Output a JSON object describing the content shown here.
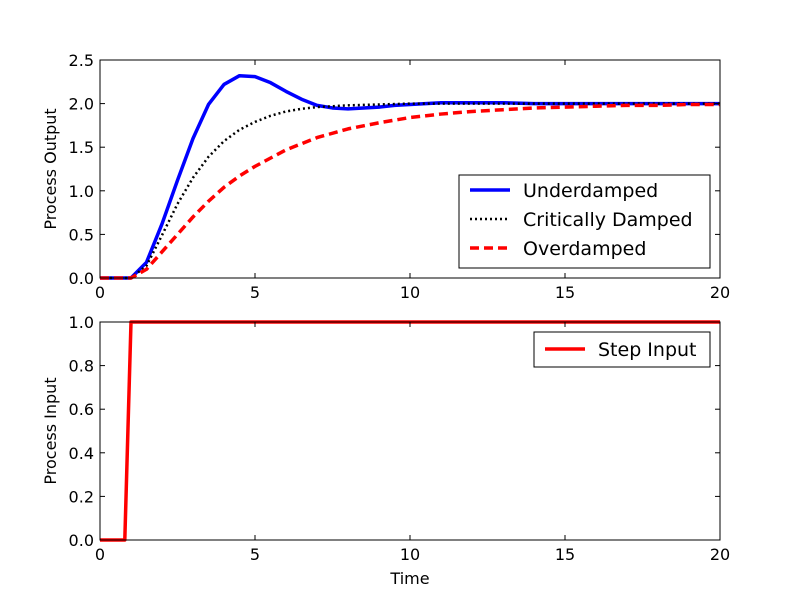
{
  "chart_data": [
    {
      "type": "line",
      "title": "",
      "xlabel": "",
      "ylabel": "Process Output",
      "xlim": [
        0,
        20
      ],
      "ylim": [
        0,
        2.5
      ],
      "xticks": [
        "0",
        "5",
        "10",
        "15",
        "20"
      ],
      "yticks": [
        "0.0",
        "0.5",
        "1.0",
        "1.5",
        "2.0",
        "2.5"
      ],
      "grid": false,
      "legend_position": "lower-right",
      "series": [
        {
          "name": "Underdamped",
          "color": "#0000ff",
          "style": "solid",
          "x": [
            0,
            1,
            1.5,
            2,
            2.5,
            3,
            3.5,
            4,
            4.5,
            5,
            5.5,
            6,
            6.5,
            7,
            7.5,
            8,
            8.5,
            9,
            9.5,
            10,
            11,
            12,
            13,
            14,
            15,
            16,
            17,
            18,
            19,
            20
          ],
          "y": [
            0,
            0,
            0.18,
            0.62,
            1.12,
            1.6,
            1.99,
            2.22,
            2.32,
            2.31,
            2.24,
            2.14,
            2.05,
            1.98,
            1.95,
            1.94,
            1.95,
            1.96,
            1.98,
            1.99,
            2.01,
            2.01,
            2.01,
            2.0,
            2.0,
            2.0,
            2.0,
            2.0,
            2.0,
            2.0
          ]
        },
        {
          "name": "Critically Damped",
          "color": "#000000",
          "style": "dotted",
          "x": [
            0,
            1,
            1.5,
            2,
            2.5,
            3,
            3.5,
            4,
            4.5,
            5,
            5.5,
            6,
            6.5,
            7,
            7.5,
            8,
            9,
            10,
            11,
            12,
            14,
            16,
            18,
            20
          ],
          "y": [
            0,
            0,
            0.14,
            0.49,
            0.85,
            1.15,
            1.39,
            1.57,
            1.7,
            1.79,
            1.86,
            1.91,
            1.94,
            1.96,
            1.97,
            1.98,
            1.99,
            2.0,
            2.0,
            2.0,
            2.0,
            2.0,
            2.0,
            2.0
          ]
        },
        {
          "name": "Overdamped",
          "color": "#ff0000",
          "style": "dashed",
          "x": [
            0,
            1,
            1.5,
            2,
            2.5,
            3,
            3.5,
            4,
            4.5,
            5,
            6,
            7,
            8,
            9,
            10,
            11,
            12,
            13,
            14,
            15,
            16,
            17,
            18,
            19,
            20
          ],
          "y": [
            0,
            0,
            0.1,
            0.3,
            0.5,
            0.7,
            0.88,
            1.04,
            1.17,
            1.28,
            1.47,
            1.61,
            1.71,
            1.78,
            1.84,
            1.88,
            1.91,
            1.93,
            1.95,
            1.96,
            1.97,
            1.98,
            1.98,
            1.99,
            1.99
          ]
        }
      ]
    },
    {
      "type": "line",
      "title": "",
      "xlabel": "Time",
      "ylabel": "Process Input",
      "xlim": [
        0,
        20
      ],
      "ylim": [
        0,
        1.0
      ],
      "xticks": [
        "0",
        "5",
        "10",
        "15",
        "20"
      ],
      "yticks": [
        "0.0",
        "0.2",
        "0.4",
        "0.6",
        "0.8",
        "1.0"
      ],
      "grid": false,
      "legend_position": "upper-right",
      "series": [
        {
          "name": "Step Input",
          "color": "#ff0000",
          "style": "solid",
          "x": [
            0,
            0.8,
            1.0,
            20
          ],
          "y": [
            0,
            0,
            1,
            1
          ]
        }
      ]
    }
  ]
}
